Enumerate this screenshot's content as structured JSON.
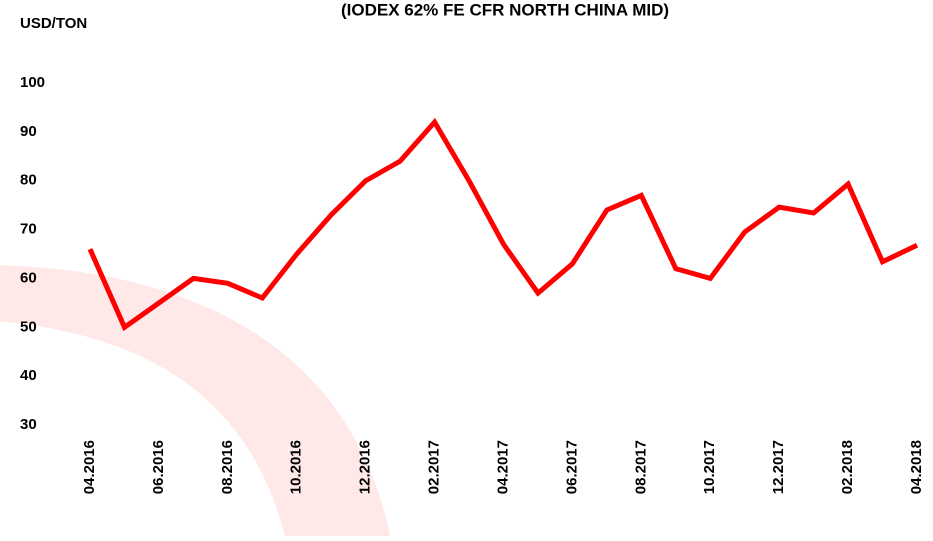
{
  "chart_data": {
    "type": "line",
    "title": "(IODEX 62% FE CFR NORTH CHINA MID)",
    "y_axis_label": "USD/TON",
    "categories": [
      "04.2016",
      null,
      "06.2016",
      null,
      "08.2016",
      null,
      "10.2016",
      null,
      "12.2016",
      null,
      "02.2017",
      null,
      "04.2017",
      null,
      "06.2017",
      null,
      "08.2017",
      null,
      "10.2017",
      null,
      "12.2017",
      null,
      "02.2018",
      null,
      "04.2018"
    ],
    "series": [
      {
        "name": "IODEX",
        "color": "#ff0000",
        "values": [
          66,
          50,
          55,
          60,
          59,
          56,
          65,
          73,
          80,
          84,
          92,
          80,
          67,
          57,
          63,
          74,
          77,
          62,
          60,
          69.5,
          74.6,
          73.4,
          79.3,
          63.4,
          66.8
        ]
      }
    ],
    "ylim": [
      30,
      100
    ],
    "yticks": [
      30,
      40,
      50,
      60,
      70,
      80,
      90,
      100
    ],
    "grid": false,
    "legend": false
  }
}
